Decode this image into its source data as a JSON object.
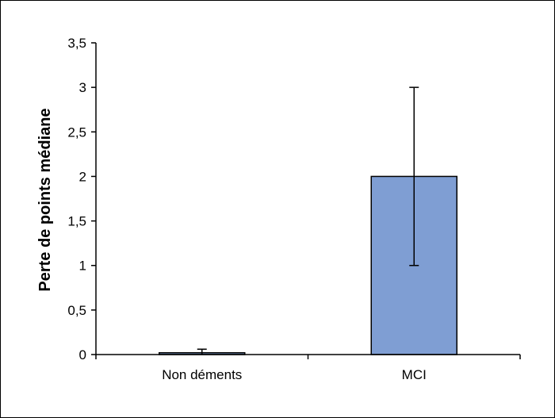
{
  "chart_data": {
    "type": "bar",
    "title": "",
    "xlabel": "",
    "ylabel": "Perte de points médiane",
    "categories": [
      "Non déments",
      "MCI"
    ],
    "values": [
      0.02,
      2.0
    ],
    "error_low": [
      0.0,
      1.0
    ],
    "error_high": [
      0.06,
      3.0
    ],
    "ylim": [
      0,
      3.5
    ],
    "yticks": [
      0,
      0.5,
      1,
      1.5,
      2,
      2.5,
      3,
      3.5
    ],
    "ytick_labels": [
      "0",
      "0,5",
      "1",
      "1,5",
      "2",
      "2,5",
      "3",
      "3,5"
    ],
    "grid": false,
    "legend": "none",
    "colors": {
      "bar": "#7f9ed3",
      "bar_stroke": "#000000",
      "axis": "#000000"
    }
  }
}
